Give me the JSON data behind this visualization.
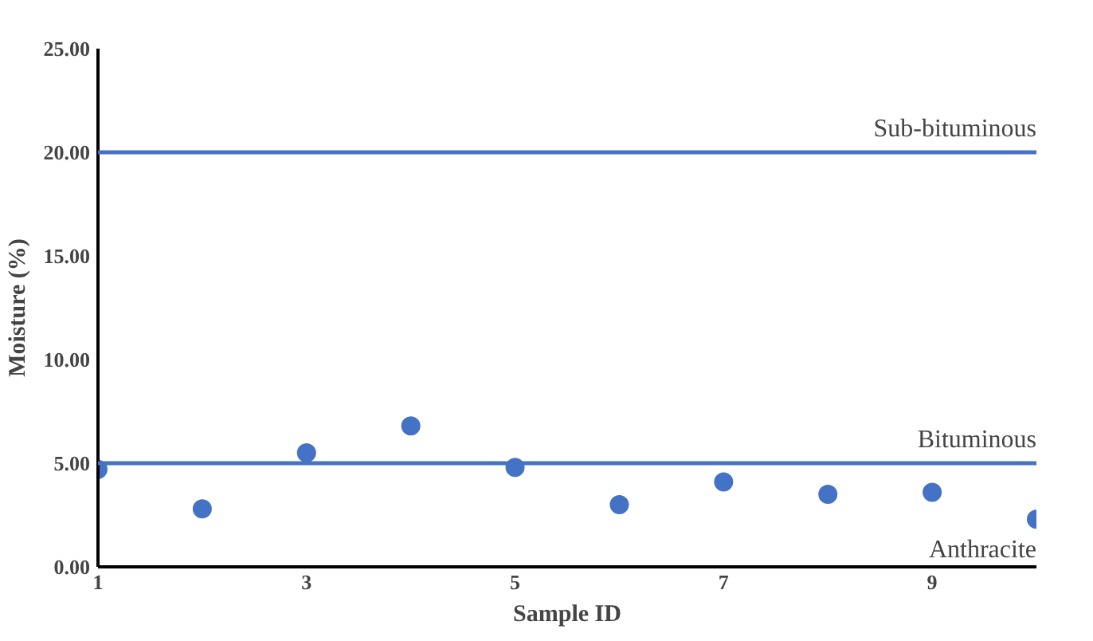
{
  "chart_data": {
    "type": "scatter",
    "xlabel": "Sample ID",
    "ylabel": "Moisture (%)",
    "x": [
      1,
      2,
      3,
      4,
      5,
      6,
      7,
      8,
      9,
      10
    ],
    "values": [
      4.7,
      2.8,
      5.5,
      6.8,
      4.8,
      3.0,
      4.1,
      3.5,
      3.6,
      2.3
    ],
    "color": "#4472c4",
    "marker": "circle",
    "xlim": [
      1,
      10
    ],
    "xticks": [
      1,
      3,
      5,
      7,
      9
    ],
    "ylim": [
      0,
      25
    ],
    "yticks": [
      {
        "value": 0,
        "label": "0.00"
      },
      {
        "value": 5,
        "label": "5.00"
      },
      {
        "value": 10,
        "label": "10.00"
      },
      {
        "value": 15,
        "label": "15.00"
      },
      {
        "value": 20,
        "label": "20.00"
      },
      {
        "value": 25,
        "label": "25.00"
      }
    ],
    "ref_lines": [
      {
        "axis": "y",
        "value": 20,
        "label": "Sub-bituminous",
        "color": "#4472c4"
      },
      {
        "axis": "y",
        "value": 5,
        "label": "Bituminous",
        "color": "#4472c4"
      }
    ],
    "annotations": [
      "Anthracite"
    ],
    "grid": false
  }
}
